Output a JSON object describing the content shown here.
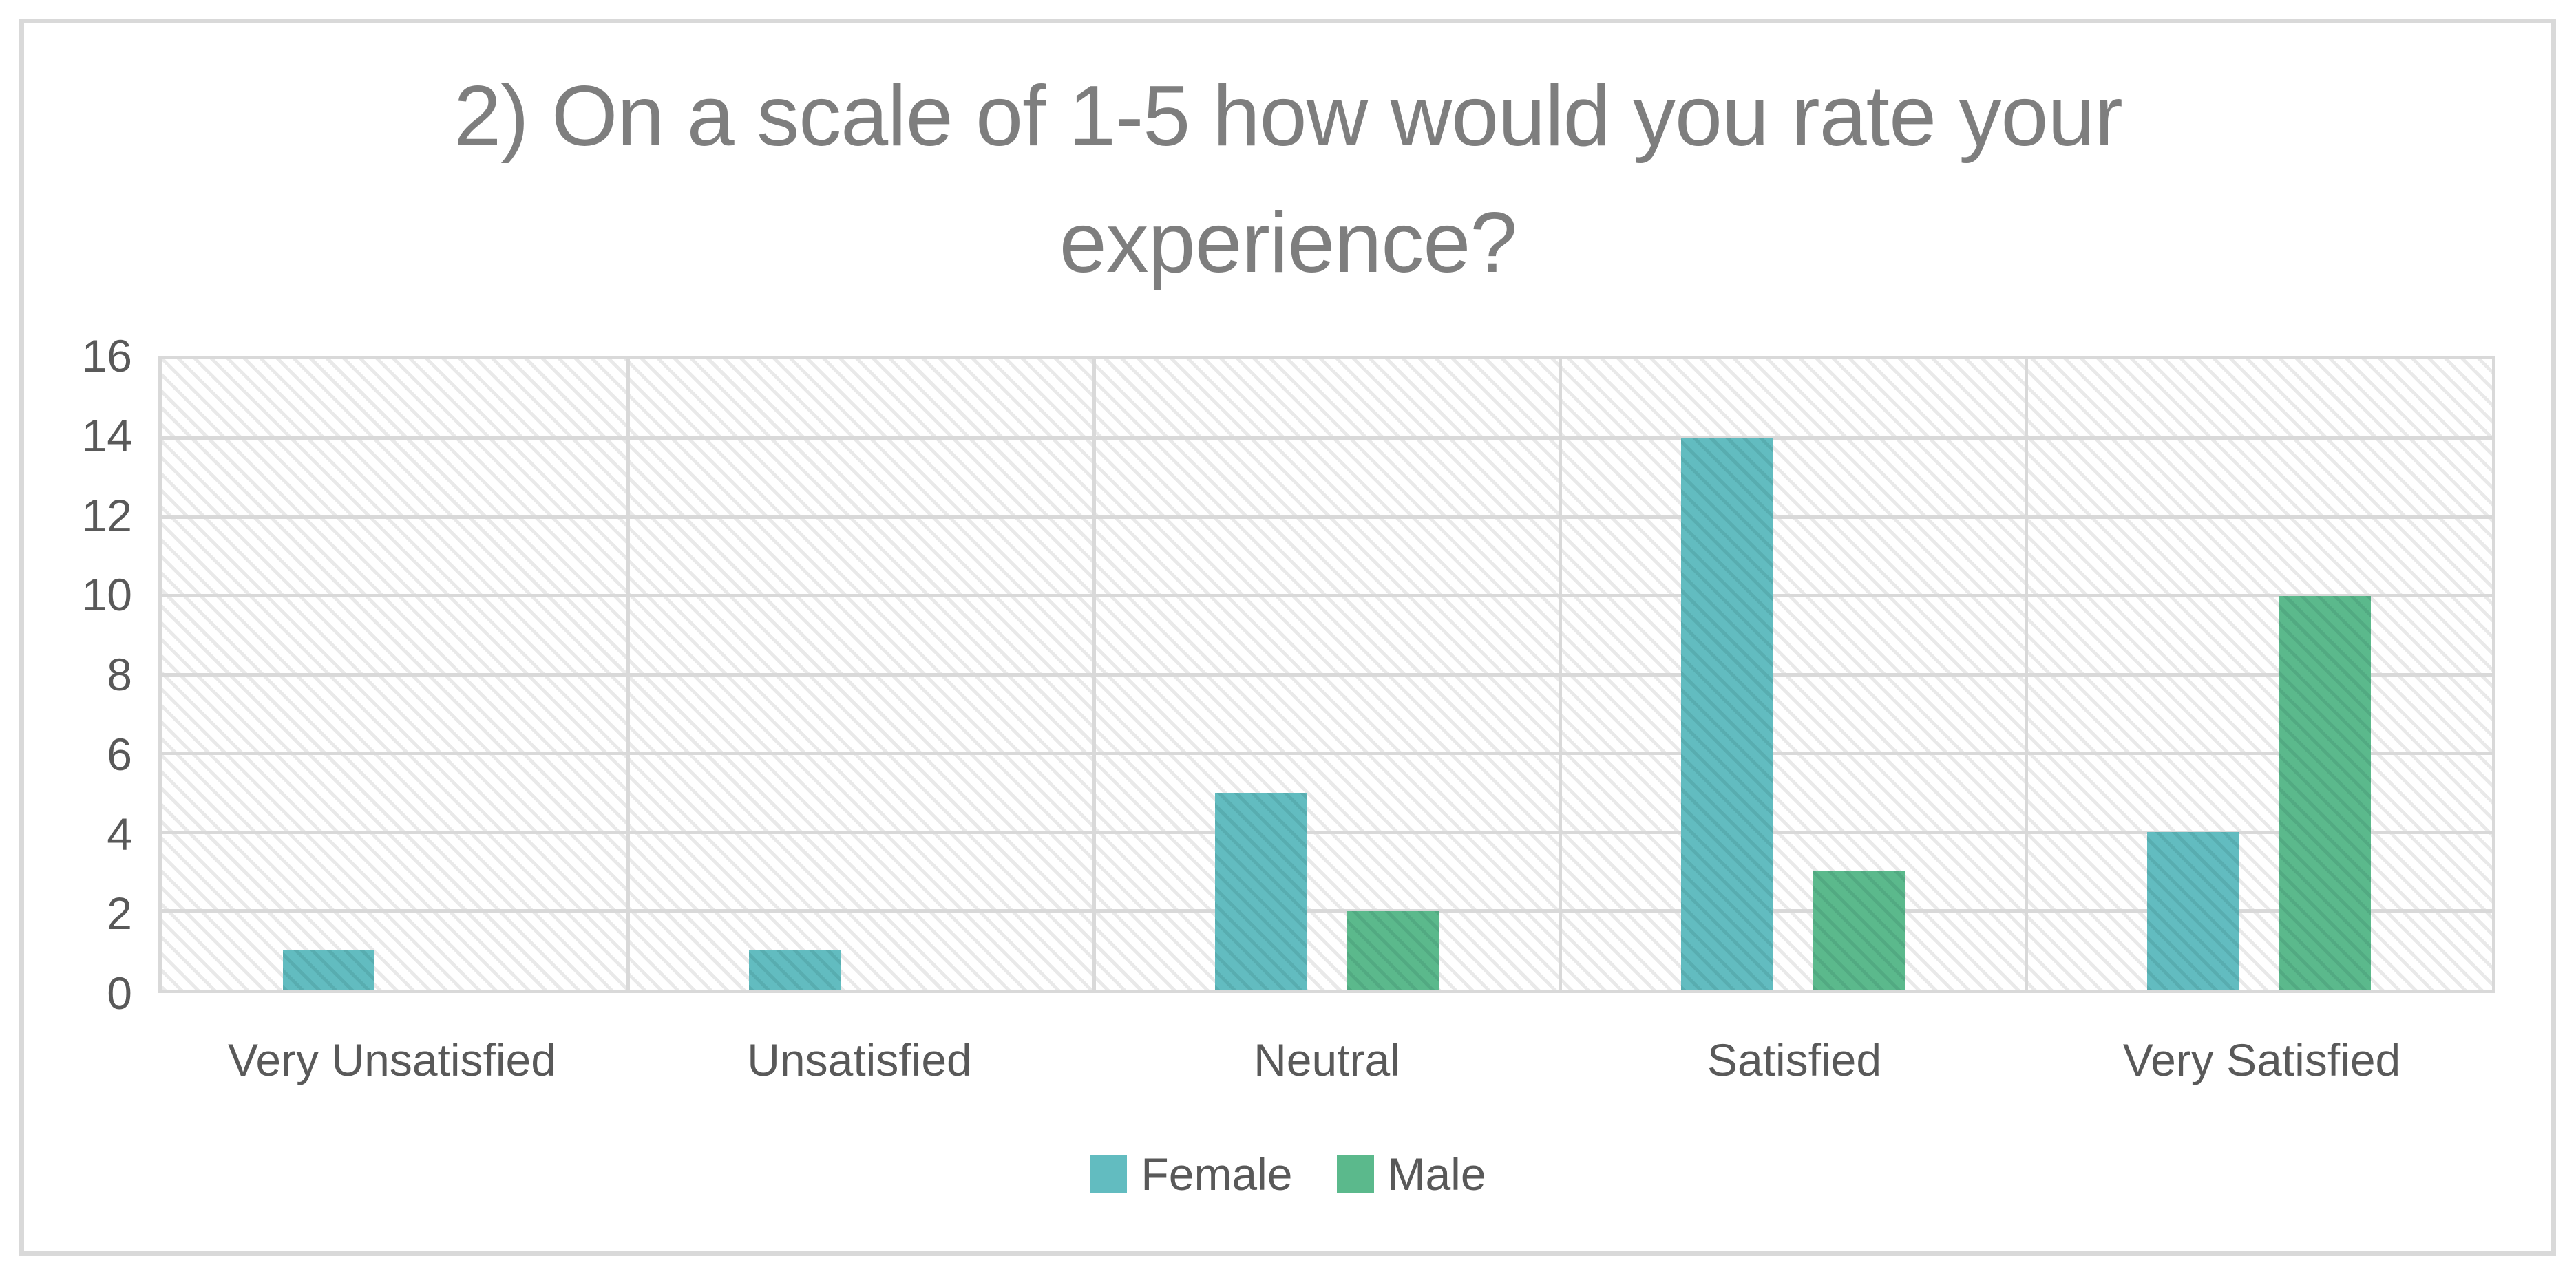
{
  "chart_data": {
    "type": "bar",
    "title": "2) On a scale of 1-5 how would you rate your experience?",
    "categories": [
      "Very Unsatisfied",
      "Unsatisfied",
      "Neutral",
      "Satisfied",
      "Very Satisfied"
    ],
    "series": [
      {
        "name": "Female",
        "color": "#62BCC0",
        "values": [
          1,
          1,
          5,
          14,
          4
        ]
      },
      {
        "name": "Male",
        "color": "#5BB98C",
        "values": [
          0,
          0,
          2,
          3,
          10
        ]
      }
    ],
    "xlabel": "",
    "ylabel": "",
    "ylim": [
      0,
      16
    ],
    "ytick_step": 2,
    "yticks": [
      0,
      2,
      4,
      6,
      8,
      10,
      12,
      14,
      16
    ],
    "grid": true,
    "plot_pattern": "light-diagonal-hatch",
    "legend_position": "bottom"
  },
  "colors": {
    "title_text": "#7E7E7E",
    "axis_text": "#595959",
    "gridline": "#D9D9D9",
    "frame_border": "#D9D9D9",
    "plot_hatch": "#E3E3E3",
    "female": "#62BCC0",
    "male": "#5BB98C"
  }
}
